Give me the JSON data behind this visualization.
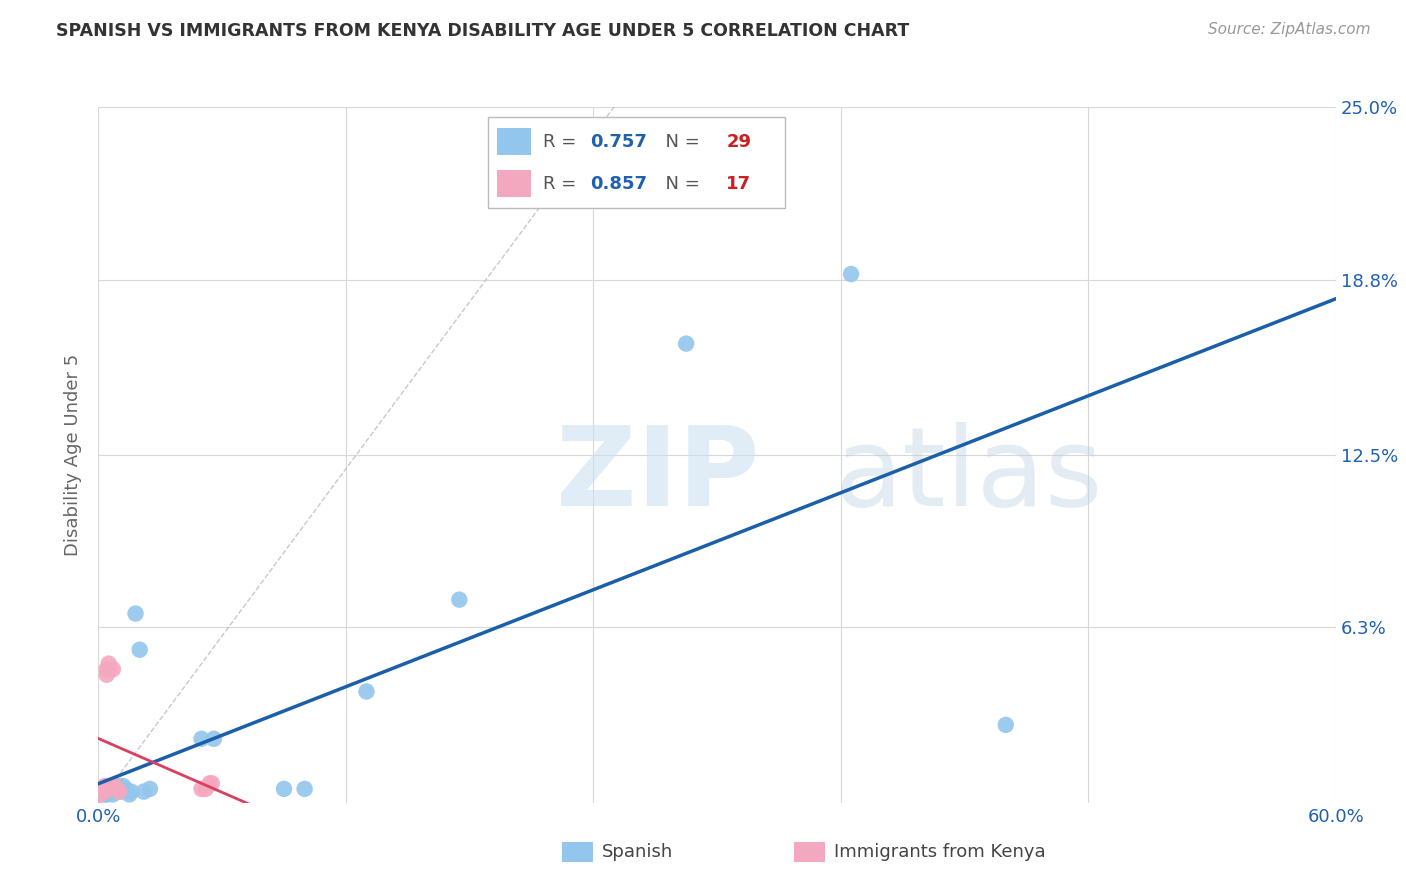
{
  "title": "SPANISH VS IMMIGRANTS FROM KENYA DISABILITY AGE UNDER 5 CORRELATION CHART",
  "source": "Source: ZipAtlas.com",
  "ylabel": "Disability Age Under 5",
  "xlim": [
    0.0,
    0.6
  ],
  "ylim": [
    0.0,
    0.25
  ],
  "xtick_positions": [
    0.0,
    0.12,
    0.24,
    0.36,
    0.48,
    0.6
  ],
  "xtick_labels": [
    "0.0%",
    "",
    "",
    "",
    "",
    "60.0%"
  ],
  "ytick_positions": [
    0.063,
    0.125,
    0.188,
    0.25
  ],
  "ytick_labels": [
    "6.3%",
    "12.5%",
    "18.8%",
    "25.0%"
  ],
  "spanish_R": 0.757,
  "spanish_N": 29,
  "kenya_R": 0.857,
  "kenya_N": 17,
  "spanish_color": "#93c6ed",
  "kenya_color": "#f4a8bf",
  "spanish_line_color": "#1a5fa8",
  "kenya_line_color": "#d94060",
  "ref_line_color": "#bbbbbb",
  "background_color": "#ffffff",
  "grid_color": "#d8d8d8",
  "spanish_points_x": [
    0.001,
    0.002,
    0.003,
    0.003,
    0.004,
    0.005,
    0.006,
    0.007,
    0.008,
    0.009,
    0.01,
    0.011,
    0.012,
    0.013,
    0.015,
    0.016,
    0.018,
    0.02,
    0.022,
    0.025,
    0.05,
    0.056,
    0.09,
    0.1,
    0.13,
    0.175,
    0.285,
    0.365,
    0.44
  ],
  "spanish_points_y": [
    0.003,
    0.004,
    0.003,
    0.005,
    0.003,
    0.004,
    0.004,
    0.003,
    0.005,
    0.005,
    0.006,
    0.004,
    0.006,
    0.005,
    0.003,
    0.004,
    0.068,
    0.055,
    0.004,
    0.005,
    0.023,
    0.023,
    0.005,
    0.005,
    0.04,
    0.073,
    0.165,
    0.19,
    0.028
  ],
  "kenya_points_x": [
    0.001,
    0.002,
    0.003,
    0.003,
    0.004,
    0.004,
    0.005,
    0.005,
    0.006,
    0.007,
    0.008,
    0.009,
    0.01,
    0.05,
    0.052,
    0.054,
    0.055
  ],
  "kenya_points_y": [
    0.003,
    0.005,
    0.004,
    0.006,
    0.046,
    0.048,
    0.05,
    0.048,
    0.006,
    0.048,
    0.006,
    0.005,
    0.004,
    0.005,
    0.005,
    0.007,
    0.007
  ],
  "zip_color": "#c8dff0",
  "atlas_color": "#b8cfe0",
  "title_color": "#333333",
  "source_color": "#999999",
  "tick_color": "#2060b0",
  "ylabel_color": "#666666",
  "legend_text_color": "#555555",
  "legend_R_color": "#2060b0",
  "legend_N_color": "#cc2020"
}
